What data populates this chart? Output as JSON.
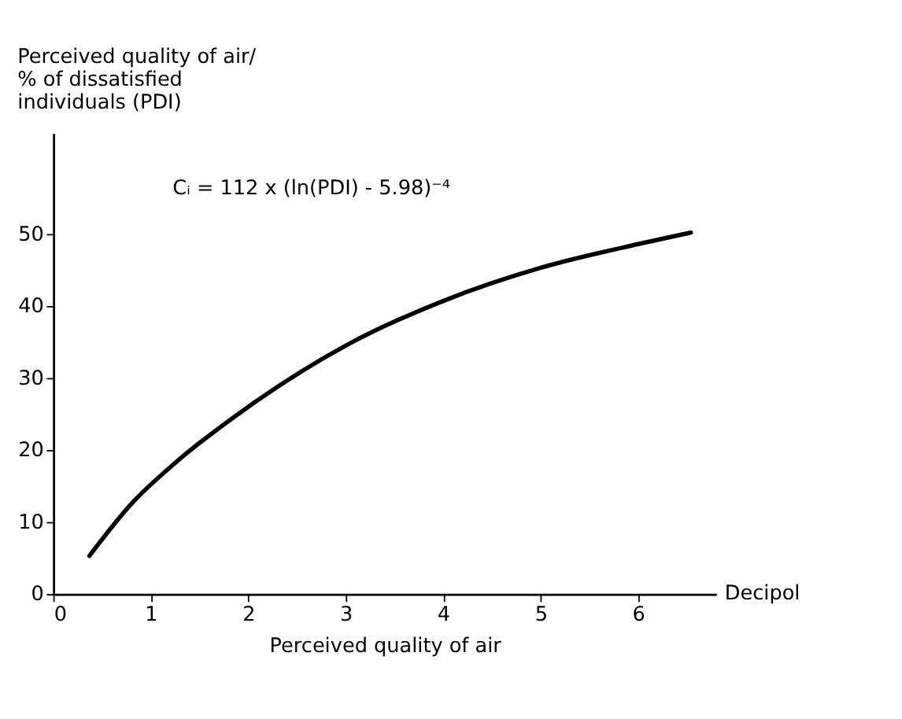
{
  "chart_data": {
    "type": "line",
    "ylabel": "Perceived quality of air/\n% of dissatisfied\nindividuals (PDI)",
    "xlabel": "Perceived quality of air",
    "annotations": [
      "Cᵢ = 112 x (ln(PDI) - 5.98)⁻⁴",
      "Decipol"
    ],
    "x": [
      0.37,
      0.82,
      1.25,
      2,
      3,
      4,
      5,
      6,
      6.54
    ],
    "series": [
      {
        "color": "#000000",
        "values": [
          5.3,
          12.8,
          18.2,
          26,
          34.5,
          40.7,
          45.3,
          48.6,
          50.2
        ]
      }
    ],
    "xlim": [
      0,
      6.8
    ],
    "xticks": [
      0,
      1,
      2,
      3,
      4,
      5,
      6
    ],
    "ylim": [
      0,
      64
    ],
    "yticks": [
      0,
      10,
      20,
      30,
      40,
      50
    ],
    "grid": false,
    "marker": "none",
    "line_style": "solid"
  }
}
